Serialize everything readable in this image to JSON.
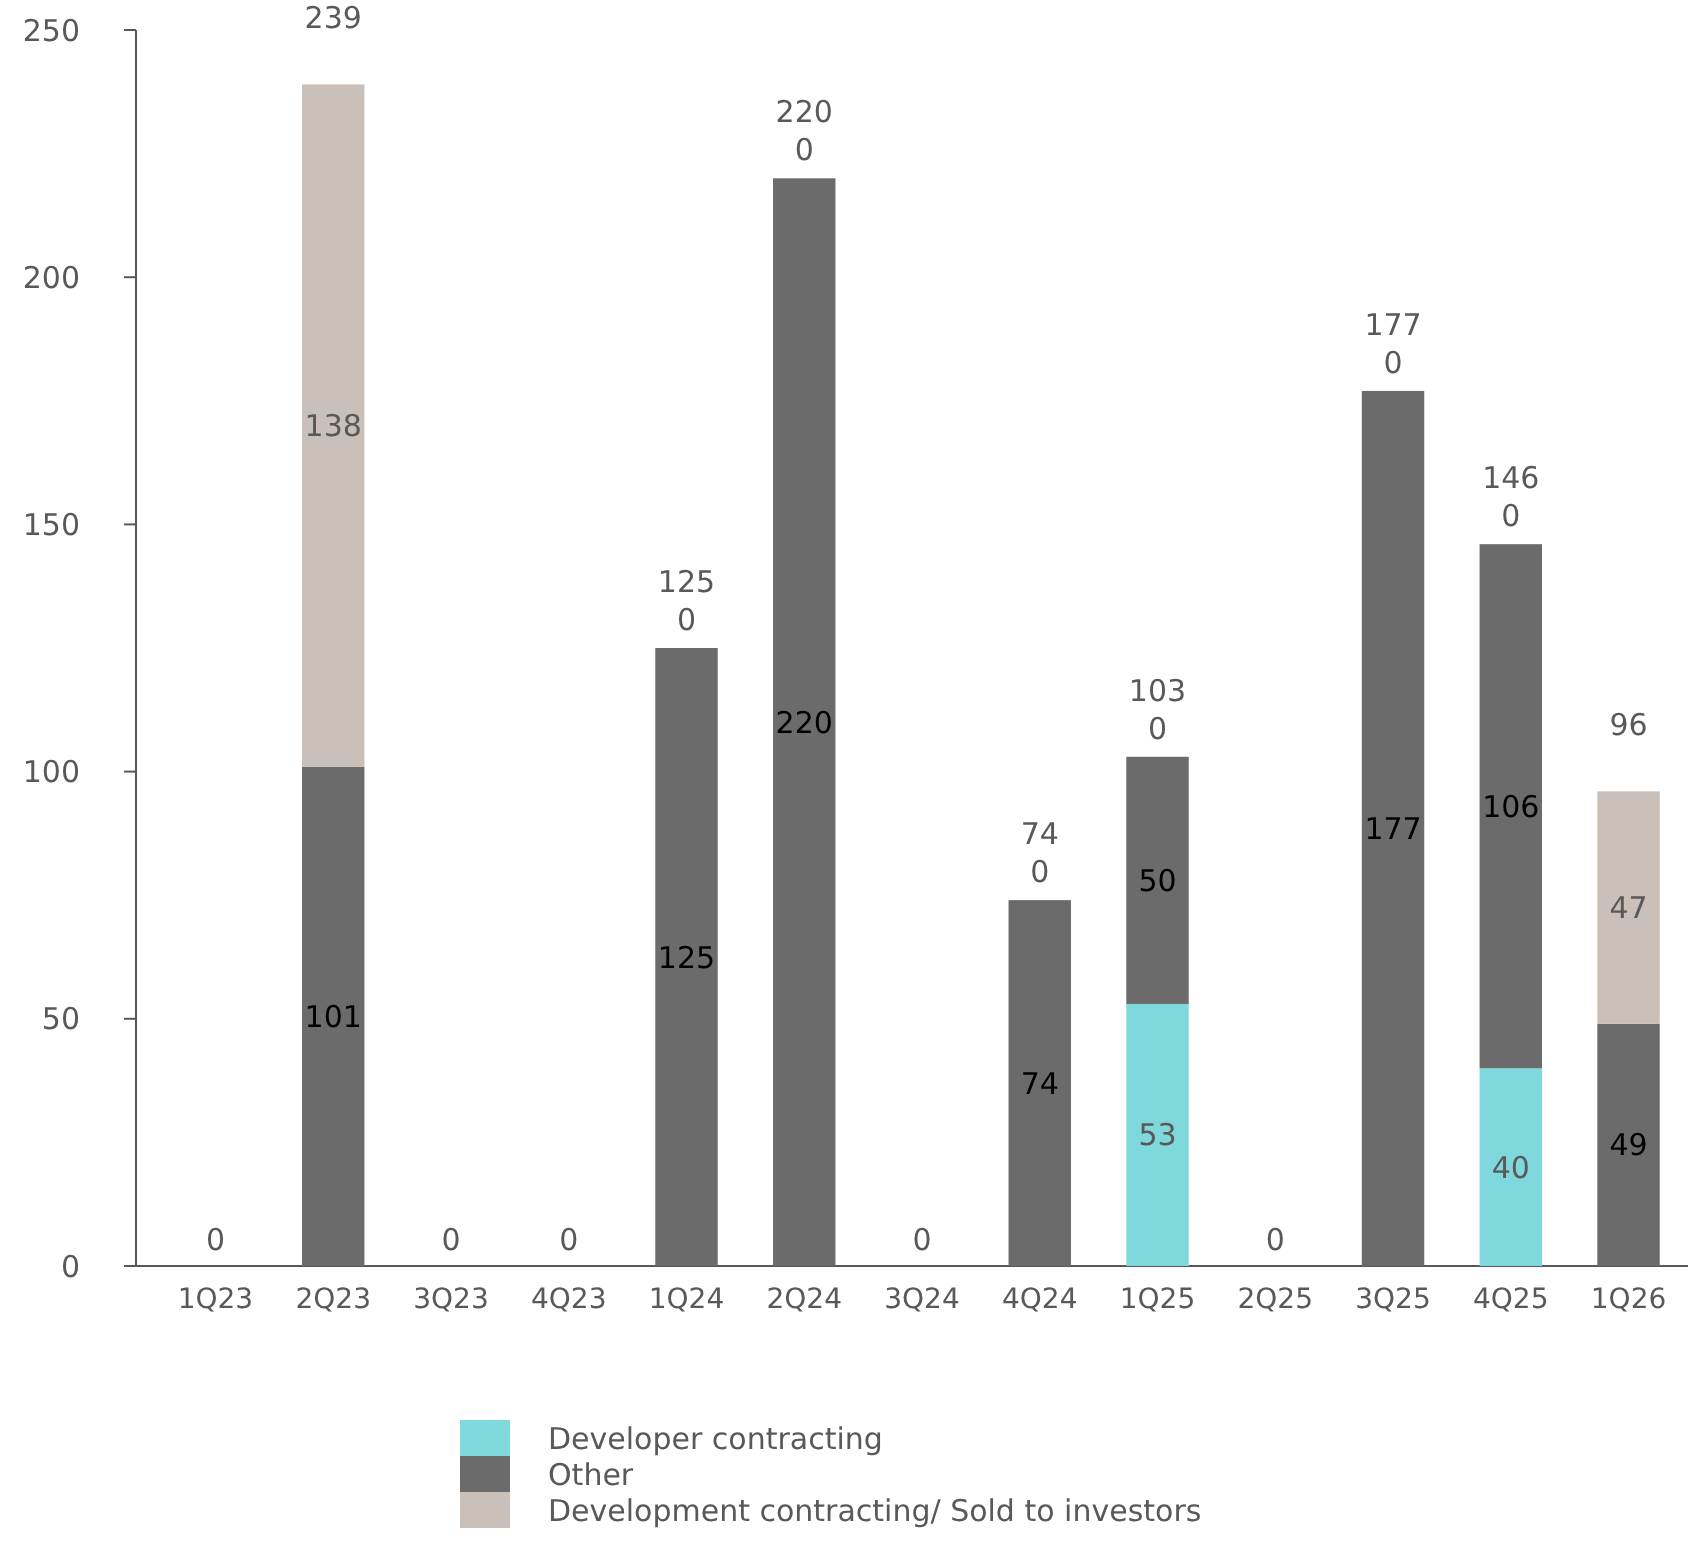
{
  "chart_data": {
    "type": "bar",
    "stacked": true,
    "categories": [
      "1Q23",
      "2Q23",
      "3Q23",
      "4Q23",
      "1Q24",
      "2Q24",
      "3Q24",
      "4Q24",
      "1Q25",
      "2Q25",
      "3Q25",
      "4Q25",
      "1Q26"
    ],
    "series": [
      {
        "name": "Developer contracting",
        "color": "#7fd8dc",
        "values": [
          0,
          0,
          0,
          0,
          0,
          0,
          0,
          0,
          53,
          0,
          0,
          40,
          0
        ],
        "value_labels": [
          null,
          null,
          null,
          null,
          null,
          null,
          null,
          null,
          "53",
          null,
          null,
          "40",
          null
        ]
      },
      {
        "name": "Other",
        "color": "#6b6b6b",
        "values": [
          0,
          101,
          0,
          0,
          125,
          220,
          0,
          74,
          50,
          0,
          177,
          106,
          49
        ],
        "value_labels": [
          null,
          "101",
          null,
          null,
          "125",
          "220",
          null,
          "74",
          "50",
          null,
          "177",
          "106",
          "49"
        ]
      },
      {
        "name": "Development contracting/ Sold to investors",
        "color": "#c9c1b9",
        "values": [
          0,
          138,
          0,
          0,
          0,
          0,
          0,
          0,
          0,
          0,
          0,
          0,
          47
        ],
        "value_labels": [
          null,
          "138",
          null,
          null,
          "0",
          "0",
          null,
          "0",
          "0",
          null,
          "0",
          "0",
          "47"
        ]
      }
    ],
    "ylim": [
      0,
      250
    ],
    "yticks": [
      0,
      50,
      100,
      150,
      200,
      250
    ],
    "grid": false,
    "legend": "bottom",
    "totals": [
      "0",
      "239",
      "0",
      "0",
      "125",
      "220",
      "0",
      "74",
      "103",
      "0",
      "177",
      "146",
      "96"
    ]
  }
}
